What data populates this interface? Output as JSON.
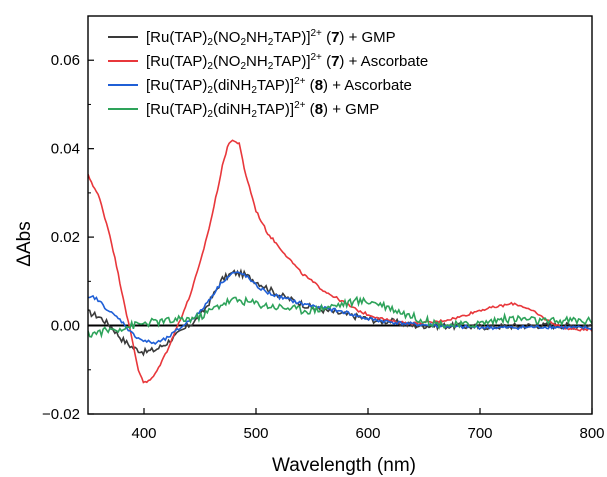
{
  "chart_data": {
    "type": "line",
    "xlabel": "Wavelength (nm)",
    "ylabel": "ΔAbs",
    "xlim": [
      350,
      800
    ],
    "ylim": [
      -0.02,
      0.07
    ],
    "x_ticks": [
      400,
      500,
      600,
      700,
      800
    ],
    "x_tick_labels": [
      "400",
      "500",
      "600",
      "700",
      "800"
    ],
    "y_ticks": [
      -0.02,
      0.0,
      0.02,
      0.04,
      0.06
    ],
    "y_tick_labels": [
      "−0.02",
      "0.00",
      "0.02",
      "0.04",
      "0.06"
    ],
    "zero_line": true,
    "grid": false,
    "legend_position": "top-left",
    "series": [
      {
        "name": "[Ru(TAP)2(NO2NH2TAP)]2+ (7) + GMP",
        "legend": [
          {
            "t": "[Ru(TAP)"
          },
          {
            "t": "2",
            "sub": true
          },
          {
            "t": "(NO"
          },
          {
            "t": "2",
            "sub": true
          },
          {
            "t": "NH"
          },
          {
            "t": "2",
            "sub": true
          },
          {
            "t": "TAP)]"
          },
          {
            "t": "2+",
            "sup": true
          },
          {
            "t": " ("
          },
          {
            "t": "7",
            "bold": true
          },
          {
            "t": ") + GMP"
          }
        ],
        "color": "#3a3a3a",
        "noise": 0.0007,
        "points": [
          [
            350,
            0.003
          ],
          [
            360,
            0.002
          ],
          [
            370,
            0.0
          ],
          [
            380,
            -0.003
          ],
          [
            390,
            -0.005
          ],
          [
            400,
            -0.006
          ],
          [
            410,
            -0.0055
          ],
          [
            420,
            -0.004
          ],
          [
            430,
            -0.002
          ],
          [
            440,
            0.0
          ],
          [
            450,
            0.002
          ],
          [
            460,
            0.006
          ],
          [
            470,
            0.0105
          ],
          [
            480,
            0.012
          ],
          [
            490,
            0.0115
          ],
          [
            500,
            0.01
          ],
          [
            510,
            0.0085
          ],
          [
            520,
            0.007
          ],
          [
            530,
            0.006
          ],
          [
            540,
            0.005
          ],
          [
            550,
            0.004
          ],
          [
            560,
            0.0035
          ],
          [
            570,
            0.003
          ],
          [
            580,
            0.0025
          ],
          [
            590,
            0.002
          ],
          [
            600,
            0.0015
          ],
          [
            610,
            0.001
          ],
          [
            620,
            0.001
          ],
          [
            630,
            0.0005
          ],
          [
            640,
            0.0
          ],
          [
            660,
            0.0
          ],
          [
            700,
            -0.0003
          ],
          [
            750,
            0.0
          ],
          [
            800,
            0.0
          ]
        ]
      },
      {
        "name": "[Ru(TAP)2(NO2NH2TAP)]2+ (7) + Ascorbate",
        "legend": [
          {
            "t": "[Ru(TAP)"
          },
          {
            "t": "2",
            "sub": true
          },
          {
            "t": "(NO"
          },
          {
            "t": "2",
            "sub": true
          },
          {
            "t": "NH"
          },
          {
            "t": "2",
            "sub": true
          },
          {
            "t": "TAP)]"
          },
          {
            "t": "2+",
            "sup": true
          },
          {
            "t": " ("
          },
          {
            "t": "7",
            "bold": true
          },
          {
            "t": ") + Ascorbate"
          }
        ],
        "color": "#e8373b",
        "noise": 0.0003,
        "points": [
          [
            350,
            0.034
          ],
          [
            360,
            0.029
          ],
          [
            370,
            0.02
          ],
          [
            380,
            0.008
          ],
          [
            390,
            -0.004
          ],
          [
            395,
            -0.01
          ],
          [
            400,
            -0.013
          ],
          [
            405,
            -0.0125
          ],
          [
            410,
            -0.011
          ],
          [
            420,
            -0.006
          ],
          [
            430,
            0.0
          ],
          [
            440,
            0.006
          ],
          [
            450,
            0.014
          ],
          [
            460,
            0.024
          ],
          [
            470,
            0.036
          ],
          [
            475,
            0.041
          ],
          [
            480,
            0.042
          ],
          [
            485,
            0.041
          ],
          [
            490,
            0.035
          ],
          [
            500,
            0.026
          ],
          [
            510,
            0.021
          ],
          [
            520,
            0.018
          ],
          [
            530,
            0.015
          ],
          [
            540,
            0.012
          ],
          [
            550,
            0.01
          ],
          [
            560,
            0.008
          ],
          [
            570,
            0.0065
          ],
          [
            580,
            0.005
          ],
          [
            590,
            0.0035
          ],
          [
            600,
            0.0025
          ],
          [
            620,
            0.001
          ],
          [
            640,
            0.0005
          ],
          [
            660,
            0.0008
          ],
          [
            680,
            0.0018
          ],
          [
            700,
            0.0035
          ],
          [
            720,
            0.0045
          ],
          [
            730,
            0.005
          ],
          [
            740,
            0.0042
          ],
          [
            750,
            0.0028
          ],
          [
            760,
            0.0012
          ],
          [
            770,
            0.0
          ],
          [
            780,
            -0.0008
          ],
          [
            800,
            -0.001
          ]
        ]
      },
      {
        "name": "[Ru(TAP)2(diNH2TAP)]2+ (8) + Ascorbate",
        "legend": [
          {
            "t": "[Ru(TAP)"
          },
          {
            "t": "2",
            "sub": true
          },
          {
            "t": "(diNH"
          },
          {
            "t": "2",
            "sub": true
          },
          {
            "t": "TAP)]"
          },
          {
            "t": "2+",
            "sup": true
          },
          {
            "t": " ("
          },
          {
            "t": "8",
            "bold": true
          },
          {
            "t": ") + Ascorbate"
          }
        ],
        "color": "#1f5fd6",
        "noise": 0.0004,
        "points": [
          [
            350,
            0.006
          ],
          [
            355,
            0.0065
          ],
          [
            360,
            0.0055
          ],
          [
            370,
            0.003
          ],
          [
            380,
            0.001
          ],
          [
            390,
            -0.002
          ],
          [
            400,
            -0.0035
          ],
          [
            410,
            -0.004
          ],
          [
            420,
            -0.003
          ],
          [
            430,
            -0.001
          ],
          [
            440,
            0.001
          ],
          [
            450,
            0.003
          ],
          [
            460,
            0.0065
          ],
          [
            470,
            0.01
          ],
          [
            480,
            0.012
          ],
          [
            490,
            0.0115
          ],
          [
            500,
            0.009
          ],
          [
            510,
            0.0075
          ],
          [
            520,
            0.0065
          ],
          [
            530,
            0.0058
          ],
          [
            540,
            0.005
          ],
          [
            550,
            0.0045
          ],
          [
            560,
            0.004
          ],
          [
            570,
            0.0035
          ],
          [
            580,
            0.003
          ],
          [
            590,
            0.0022
          ],
          [
            600,
            0.0015
          ],
          [
            620,
            0.0008
          ],
          [
            640,
            0.0003
          ],
          [
            680,
            -0.0003
          ],
          [
            720,
            -0.0005
          ],
          [
            760,
            -0.0003
          ],
          [
            800,
            -0.0006
          ]
        ]
      },
      {
        "name": "[Ru(TAP)2(diNH2TAP)]2+ (8) + GMP",
        "legend": [
          {
            "t": "[Ru(TAP)"
          },
          {
            "t": "2",
            "sub": true
          },
          {
            "t": "(diNH"
          },
          {
            "t": "2",
            "sub": true
          },
          {
            "t": "TAP)]"
          },
          {
            "t": "2+",
            "sup": true
          },
          {
            "t": " ("
          },
          {
            "t": "8",
            "bold": true
          },
          {
            "t": ") + GMP"
          }
        ],
        "color": "#2ea35a",
        "noise": 0.0009,
        "points": [
          [
            350,
            -0.002
          ],
          [
            360,
            -0.0015
          ],
          [
            370,
            -0.001
          ],
          [
            380,
            -0.0005
          ],
          [
            390,
            0.0
          ],
          [
            400,
            0.0005
          ],
          [
            410,
            0.0008
          ],
          [
            420,
            0.001
          ],
          [
            430,
            0.0012
          ],
          [
            440,
            0.0015
          ],
          [
            450,
            0.002
          ],
          [
            460,
            0.0035
          ],
          [
            470,
            0.005
          ],
          [
            480,
            0.0058
          ],
          [
            490,
            0.0055
          ],
          [
            500,
            0.005
          ],
          [
            510,
            0.0045
          ],
          [
            520,
            0.0042
          ],
          [
            530,
            0.004
          ],
          [
            540,
            0.0035
          ],
          [
            550,
            0.0035
          ],
          [
            560,
            0.004
          ],
          [
            570,
            0.0045
          ],
          [
            580,
            0.005
          ],
          [
            590,
            0.0055
          ],
          [
            600,
            0.0055
          ],
          [
            610,
            0.005
          ],
          [
            620,
            0.004
          ],
          [
            630,
            0.003
          ],
          [
            640,
            0.002
          ],
          [
            660,
            0.0005
          ],
          [
            680,
            0.0
          ],
          [
            700,
            0.0005
          ],
          [
            720,
            0.0015
          ],
          [
            740,
            0.0015
          ],
          [
            760,
            0.0008
          ],
          [
            780,
            0.0012
          ],
          [
            800,
            0.001
          ]
        ]
      }
    ]
  }
}
